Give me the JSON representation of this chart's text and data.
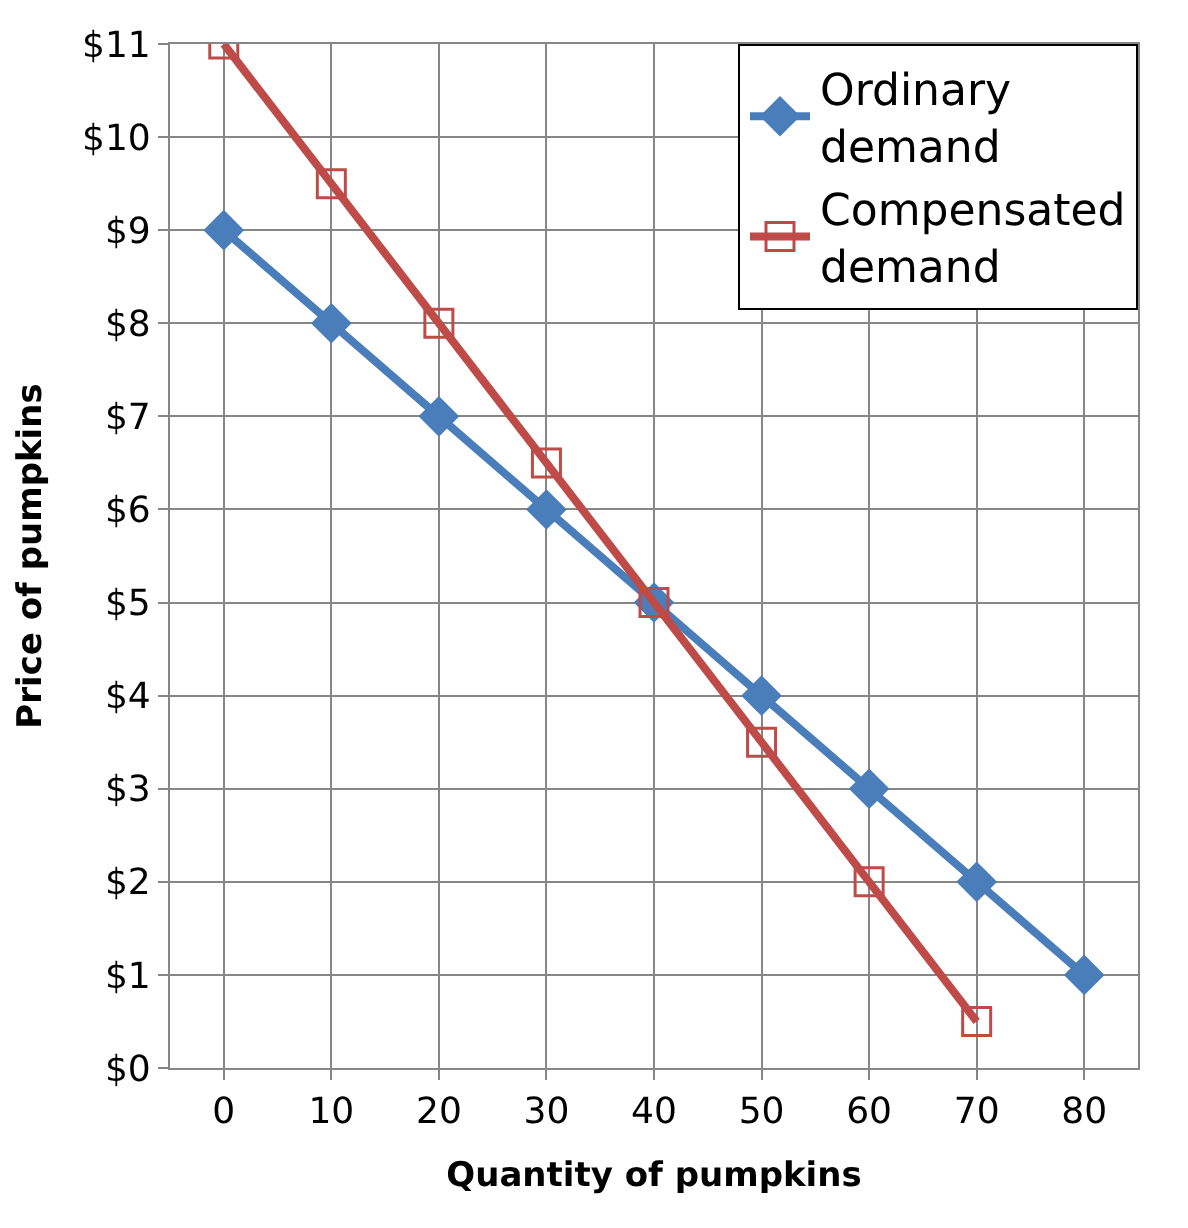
{
  "chart_data": {
    "type": "line",
    "xlabel": "Quantity of pumpkins",
    "ylabel": "Price of pumpkins",
    "xlim": [
      -5,
      85
    ],
    "xticks": [
      0,
      10,
      20,
      30,
      40,
      50,
      60,
      70,
      80
    ],
    "ylim": [
      0,
      11
    ],
    "yticks": [
      {
        "value": 0,
        "label": "$0"
      },
      {
        "value": 1,
        "label": "$1"
      },
      {
        "value": 2,
        "label": "$2"
      },
      {
        "value": 3,
        "label": "$3"
      },
      {
        "value": 4,
        "label": "$4"
      },
      {
        "value": 5,
        "label": "$5"
      },
      {
        "value": 6,
        "label": "$6"
      },
      {
        "value": 7,
        "label": "$7"
      },
      {
        "value": 8,
        "label": "$8"
      },
      {
        "value": 9,
        "label": "$9"
      },
      {
        "value": 10,
        "label": "$10"
      },
      {
        "value": 11,
        "label": "$11"
      }
    ],
    "grid": true,
    "legend": "top right",
    "line_style": "solid",
    "series": [
      {
        "name": "Ordinary\ndemand",
        "color": "#4a7ebb",
        "marker": "diamond",
        "x": [
          0,
          10,
          20,
          30,
          40,
          50,
          60,
          70,
          80
        ],
        "values": [
          9,
          8,
          7,
          6,
          5,
          4,
          3,
          2,
          1
        ]
      },
      {
        "name": "Compensated\ndemand",
        "color": "#be4b48",
        "marker": "square",
        "x": [
          0,
          10,
          20,
          30,
          40,
          50,
          60,
          70
        ],
        "values": [
          11,
          9.5,
          8,
          6.5,
          5,
          3.5,
          2,
          0.5
        ]
      }
    ]
  }
}
